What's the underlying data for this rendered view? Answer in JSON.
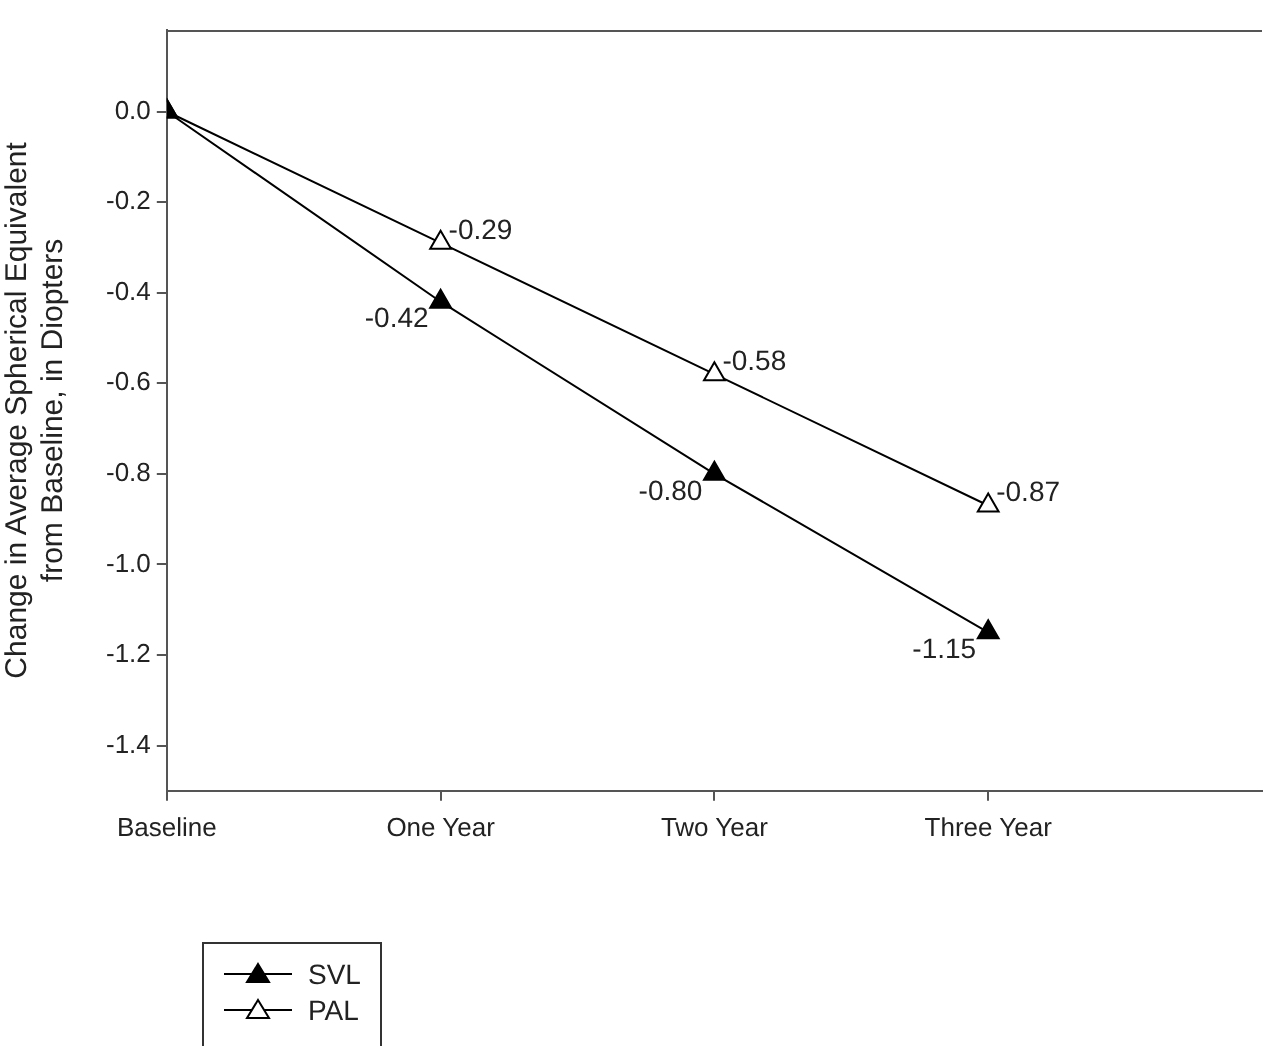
{
  "chart_data": {
    "type": "line",
    "ylabel": "Change in Average Spherical Equivalent\nfrom Baseline, in Diopters",
    "categories": [
      "Baseline",
      "One Year",
      "Two Year",
      "Three Year"
    ],
    "series": [
      {
        "name": "SVL",
        "color": "#000000",
        "values": [
          0,
          -0.42,
          -0.8,
          -1.15
        ],
        "value_labels": [
          null,
          "-0.42",
          "-0.80",
          "-1.15"
        ]
      },
      {
        "name": "PAL",
        "color": "#000000",
        "values": [
          0,
          -0.29,
          -0.58,
          -0.87
        ],
        "value_labels": [
          null,
          "-0.29",
          "-0.58",
          "-0.87"
        ]
      }
    ],
    "ylim": [
      -1.5,
      0.18
    ],
    "yticks": [
      {
        "value": -1.4,
        "label": "-1.4"
      },
      {
        "value": -1.2,
        "label": "-1.2"
      },
      {
        "value": -1.0,
        "label": "-1.0"
      },
      {
        "value": -0.8,
        "label": "-0.8"
      },
      {
        "value": -0.6,
        "label": "-0.6"
      },
      {
        "value": -0.4,
        "label": "-0.4"
      },
      {
        "value": -0.2,
        "label": "-0.2"
      },
      {
        "value": 0,
        "label": "0.0"
      }
    ],
    "marker": "triangle",
    "line_style": "solid",
    "legend": "bottom left"
  }
}
